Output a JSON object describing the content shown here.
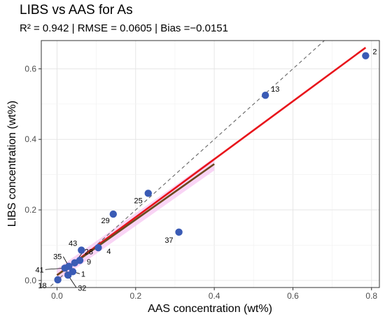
{
  "chart_data": {
    "type": "scatter",
    "title": "LIBS vs AAS for As",
    "subtitle": "R² = 0.942 | RMSE = 0.0605 | Bias =−0.0151",
    "xlabel": "AAS concentration (wt%)",
    "ylabel": "LIBS concentration (wt%)",
    "xlim": [
      -0.04,
      0.82
    ],
    "ylim": [
      -0.02,
      0.68
    ],
    "xticks": [
      0.0,
      0.2,
      0.4,
      0.6,
      0.8
    ],
    "xtick_labels": [
      "0.0",
      "0.2",
      "0.4",
      "0.6",
      "0.8"
    ],
    "yticks": [
      0.0,
      0.2,
      0.4,
      0.6
    ],
    "ytick_labels": [
      "0.0",
      "0.2",
      "0.4",
      "0.6"
    ],
    "grid": true,
    "point_color": "#3a5bb5",
    "points": [
      {
        "x": 0.785,
        "y": 0.637,
        "label": "2"
      },
      {
        "x": 0.53,
        "y": 0.525,
        "label": "13"
      },
      {
        "x": 0.232,
        "y": 0.247,
        "label": "25"
      },
      {
        "x": 0.143,
        "y": 0.188,
        "label": "29"
      },
      {
        "x": 0.31,
        "y": 0.137,
        "label": "37"
      },
      {
        "x": 0.105,
        "y": 0.093,
        "label": "4"
      },
      {
        "x": 0.062,
        "y": 0.086,
        "label": "43"
      },
      {
        "x": 0.058,
        "y": 0.057,
        "label": "9"
      },
      {
        "x": 0.045,
        "y": 0.05,
        "label": "28"
      },
      {
        "x": 0.03,
        "y": 0.04,
        "label": "35"
      },
      {
        "x": 0.02,
        "y": 0.035,
        "label": "41"
      },
      {
        "x": 0.04,
        "y": 0.025,
        "label": "1"
      },
      {
        "x": 0.028,
        "y": 0.015,
        "label": "32"
      },
      {
        "x": 0.002,
        "y": 0.002,
        "label": "18"
      }
    ],
    "identity_line": {
      "color": "#666666",
      "style": "dashed"
    },
    "fit_line": {
      "color": "#e8141b",
      "x": [
        0.0,
        0.785
      ],
      "y": [
        0.015,
        0.66
      ]
    },
    "fit_line_lower": {
      "color": "#6b4a20",
      "x": [
        0.0,
        0.4
      ],
      "y": [
        0.015,
        0.33
      ]
    },
    "confidence_band_color": "#f7c6f2"
  }
}
